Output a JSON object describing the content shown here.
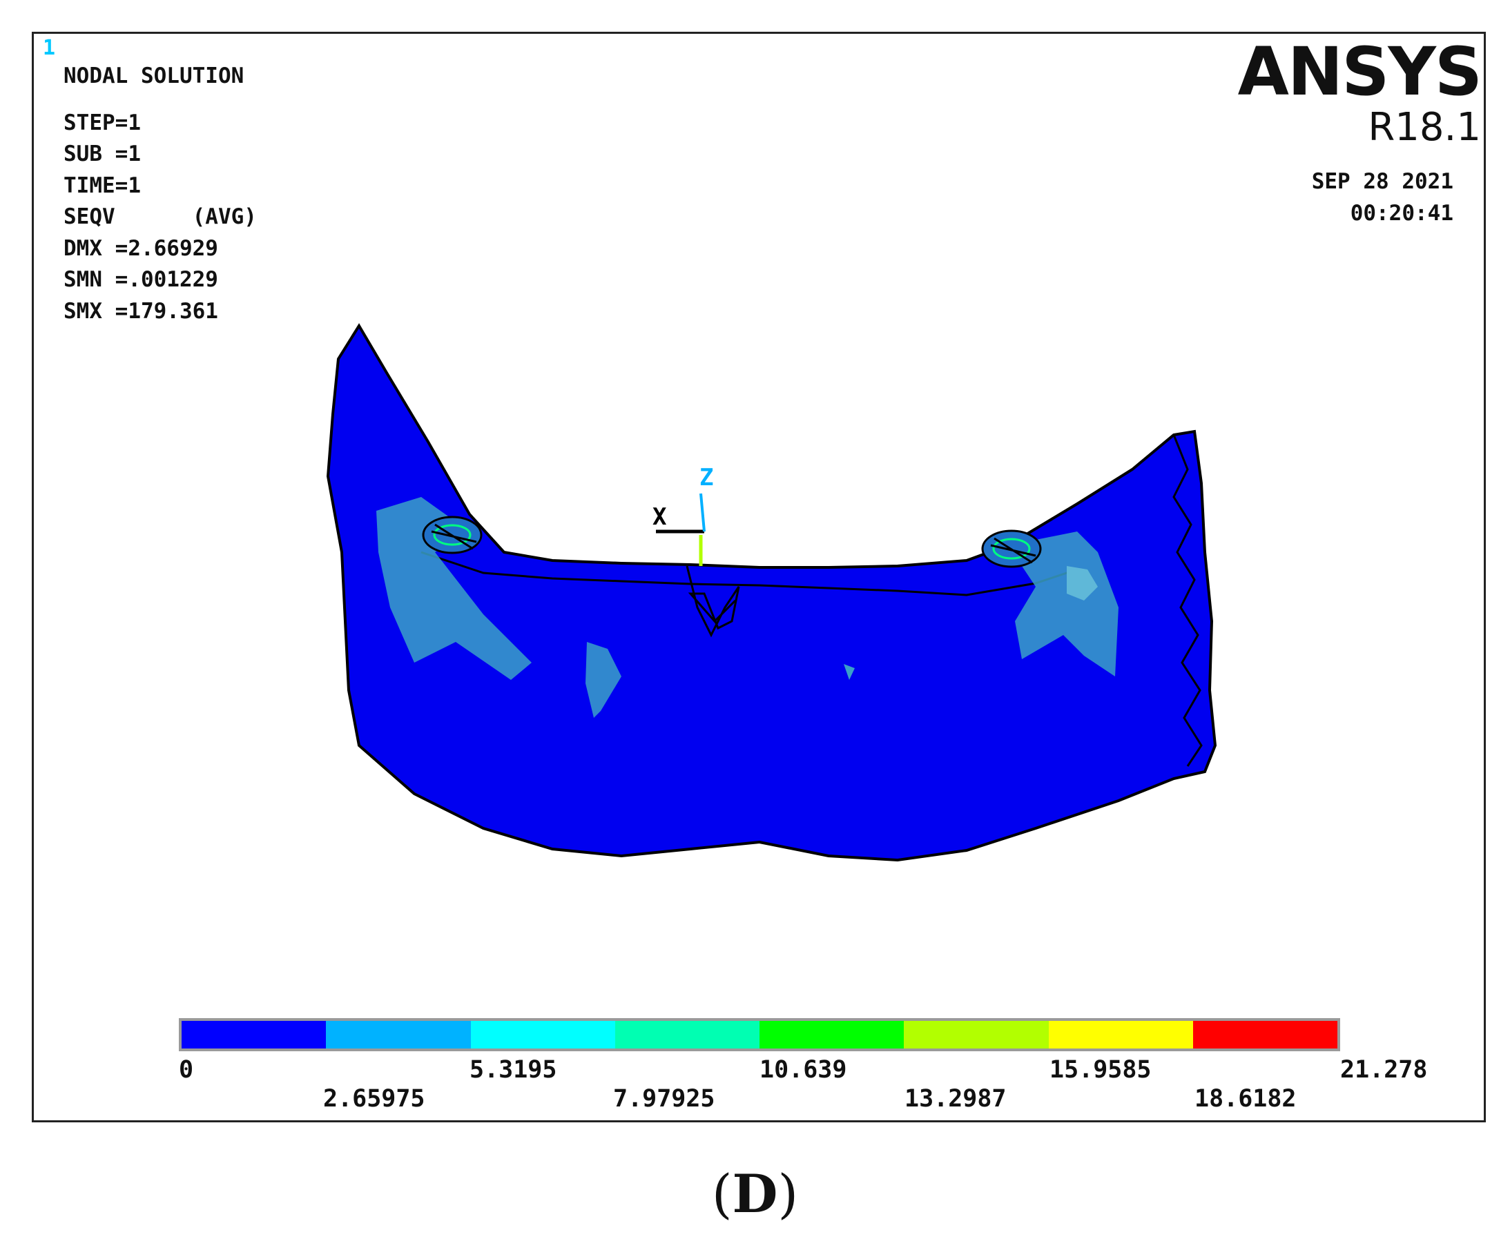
{
  "window_number": "1",
  "info": {
    "title": "NODAL SOLUTION",
    "rows": [
      "STEP=1",
      "SUB =1",
      "TIME=1",
      "SEQV      (AVG)",
      "DMX =2.66929",
      "SMN =.001229",
      "SMX =179.361"
    ]
  },
  "brand": {
    "name": "ANSYS",
    "version": "R18.1"
  },
  "datetime": {
    "date": "SEP 28 2021",
    "time": "00:20:41"
  },
  "axes_triad": {
    "x_label": "X",
    "z_label": "Z"
  },
  "legend": {
    "colors": [
      "#0000ff",
      "#00b2ff",
      "#00ffff",
      "#00ffb2",
      "#00ff00",
      "#b2ff00",
      "#ffff00",
      "#ff0000"
    ],
    "labels_top": [
      "0",
      "5.3195",
      "10.639",
      "15.9585",
      "21.278"
    ],
    "labels_bottom": [
      "2.65975",
      "7.97925",
      "13.2987",
      "18.6182"
    ]
  },
  "panel_label": {
    "open": "(",
    "letter": "D",
    "close": ")"
  },
  "model_colors": {
    "body": "#0000f0",
    "highlight": "#1e90ff",
    "mid": "#3aa0c8",
    "edge": "#000000"
  }
}
